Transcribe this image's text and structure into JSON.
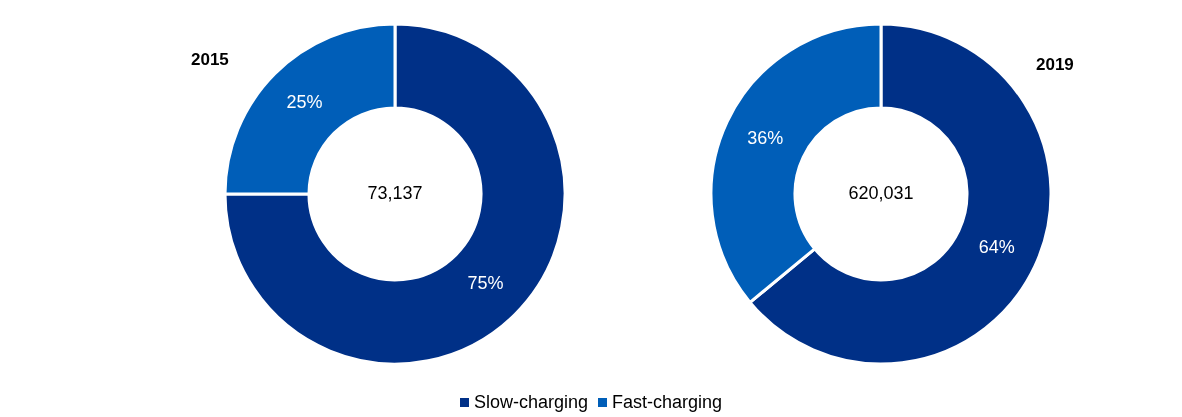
{
  "chart_data": [
    {
      "type": "donut",
      "title": "2015",
      "categories": [
        "Slow-charging",
        "Fast-charging"
      ],
      "values": [
        75,
        25
      ],
      "value_labels": [
        "75%",
        "25%"
      ],
      "colors": [
        "#003087",
        "#005eb8"
      ],
      "annotations": [
        "73,137"
      ],
      "legend": "bottom"
    },
    {
      "type": "donut",
      "title": "2019",
      "categories": [
        null,
        null
      ],
      "values": [
        64,
        36
      ],
      "value_labels": [
        "64%",
        "36%"
      ],
      "colors": [
        "#003087",
        "#005eb8"
      ],
      "annotations": [
        "620,031"
      ]
    }
  ]
}
